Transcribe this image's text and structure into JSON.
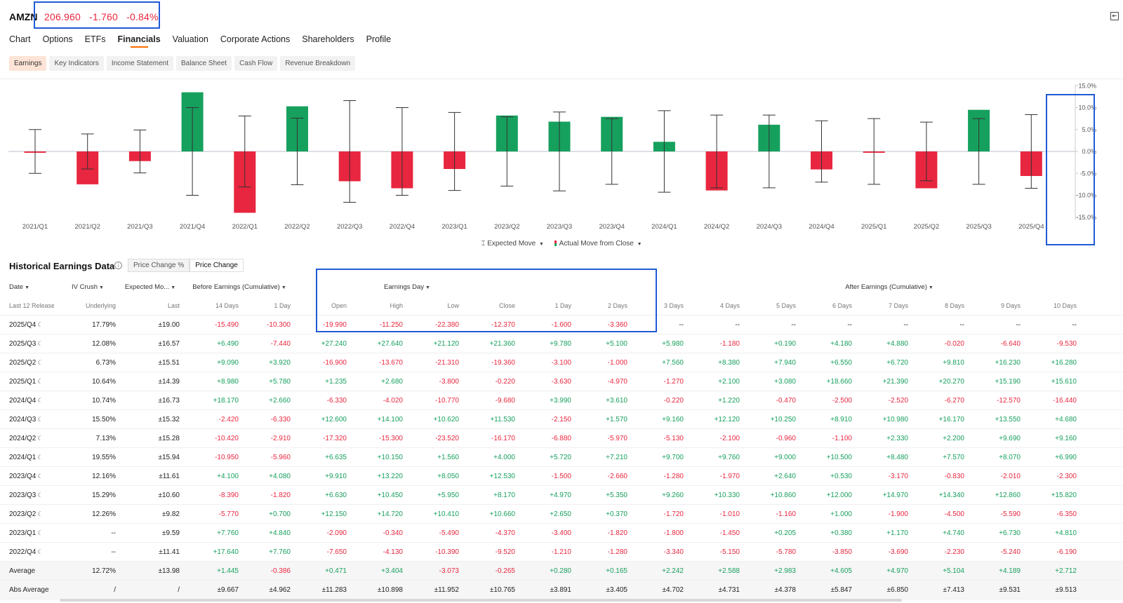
{
  "header": {
    "ticker": "AMZN",
    "price": "206.960",
    "change": "-1.760",
    "change_pct": "-0.84%"
  },
  "nav": [
    "Chart",
    "Options",
    "ETFs",
    "Financials",
    "Valuation",
    "Corporate Actions",
    "Shareholders",
    "Profile"
  ],
  "nav_active": "Financials",
  "subtabs": [
    "Earnings",
    "Key Indicators",
    "Income Statement",
    "Balance Sheet",
    "Cash Flow",
    "Revenue Breakdown"
  ],
  "subtab_active": "Earnings",
  "colors": {
    "positive": "#16a05d",
    "negative": "#e8263f",
    "accent": "#ff6a00",
    "highlight": "#1f5bd6"
  },
  "chart_data": {
    "type": "bar",
    "categories": [
      "2021/Q1",
      "2021/Q2",
      "2021/Q3",
      "2021/Q4",
      "2022/Q1",
      "2022/Q2",
      "2022/Q3",
      "2022/Q4",
      "2023/Q1",
      "2023/Q2",
      "2023/Q3",
      "2023/Q4",
      "2024/Q1",
      "2024/Q2",
      "2024/Q3",
      "2024/Q4",
      "2025/Q1",
      "2025/Q2",
      "2025/Q3",
      "2025/Q4"
    ],
    "series": [
      {
        "name": "Actual Move from Close",
        "values": [
          -0.3,
          -7.5,
          -2.2,
          13.5,
          -14.0,
          10.3,
          -6.8,
          -8.4,
          -4.0,
          8.2,
          6.8,
          7.9,
          2.2,
          -8.9,
          6.1,
          -4.1,
          -0.3,
          -8.4,
          9.5,
          -5.6
        ]
      },
      {
        "name": "Expected Move",
        "values": [
          5.0,
          4.0,
          4.9,
          10.0,
          8.1,
          7.6,
          11.6,
          10.0,
          8.9,
          7.9,
          9.0,
          7.5,
          9.3,
          8.3,
          8.3,
          7.0,
          7.5,
          6.7,
          7.5,
          8.4
        ]
      }
    ],
    "y_ticks": [
      "15.0%",
      "10.0%",
      "5.0%",
      "0.0%",
      "-5.0%",
      "-10.0%",
      "-15.0%"
    ],
    "ylim": [
      -15,
      15
    ],
    "legend": [
      "Expected Move",
      "Actual Move from Close"
    ],
    "legend_position": "bottom-center"
  },
  "section": {
    "title": "Historical Earnings Data",
    "toggle": [
      "Price Change %",
      "Price Change"
    ],
    "toggle_active": "Price Change"
  },
  "table": {
    "group_headers": {
      "date": "Date",
      "iv": "IV Crush",
      "em": "Expected Mo...",
      "before": "Before Earnings (Cumulative)",
      "day": "Earnings Day",
      "after": "After Earnings (Cumulative)"
    },
    "sub_headers": [
      "Last 12 Release",
      "Underlying",
      "Last",
      "14 Days",
      "1 Day",
      "Open",
      "High",
      "Low",
      "Close",
      "1 Day",
      "2 Days",
      "3 Days",
      "4 Days",
      "5 Days",
      "6 Days",
      "7 Days",
      "8 Days",
      "9 Days",
      "10 Days"
    ],
    "rows": [
      [
        "2025/Q4",
        "17.79%",
        "±19.00",
        "-15.490",
        "-10.300",
        "-19.990",
        "-11.250",
        "-22.380",
        "-12.370",
        "-1.600",
        "-3.360",
        "--",
        "--",
        "--",
        "--",
        "--",
        "--",
        "--",
        "--"
      ],
      [
        "2025/Q3",
        "12.08%",
        "±16.57",
        "+6.490",
        "-7.440",
        "+27.240",
        "+27.640",
        "+21.120",
        "+21.360",
        "+9.780",
        "+5.100",
        "+5.980",
        "-1.180",
        "+0.190",
        "+4.180",
        "+4.880",
        "-0.020",
        "-6.640",
        "-9.530"
      ],
      [
        "2025/Q2",
        "6.73%",
        "±15.51",
        "+9.090",
        "+3.920",
        "-16.900",
        "-13.670",
        "-21.310",
        "-19.360",
        "-3.100",
        "-1.000",
        "+7.560",
        "+8.380",
        "+7.940",
        "+6.550",
        "+6.720",
        "+9.810",
        "+16.230",
        "+16.280"
      ],
      [
        "2025/Q1",
        "10.64%",
        "±14.39",
        "+8.980",
        "+5.780",
        "+1.235",
        "+2.680",
        "-3.800",
        "-0.220",
        "-3.630",
        "-4.970",
        "-1.270",
        "+2.100",
        "+3.080",
        "+18.660",
        "+21.390",
        "+20.270",
        "+15.190",
        "+15.610"
      ],
      [
        "2024/Q4",
        "10.74%",
        "±16.73",
        "+18.170",
        "+2.660",
        "-6.330",
        "-4.020",
        "-10.770",
        "-9.680",
        "+3.990",
        "+3.610",
        "-0.220",
        "+1.220",
        "-0.470",
        "-2.500",
        "-2.520",
        "-6.270",
        "-12.570",
        "-16.440"
      ],
      [
        "2024/Q3",
        "15.50%",
        "±15.32",
        "-2.420",
        "-6.330",
        "+12.600",
        "+14.100",
        "+10.620",
        "+11.530",
        "-2.150",
        "+1.570",
        "+9.160",
        "+12.120",
        "+10.250",
        "+8.910",
        "+10.980",
        "+16.170",
        "+13.550",
        "+4.680"
      ],
      [
        "2024/Q2",
        "7.13%",
        "±15.28",
        "-10.420",
        "-2.910",
        "-17.320",
        "-15.300",
        "-23.520",
        "-16.170",
        "-6.880",
        "-5.970",
        "-5.130",
        "-2.100",
        "-0.960",
        "-1.100",
        "+2.330",
        "+2.200",
        "+9.690",
        "+9.160"
      ],
      [
        "2024/Q1",
        "19.55%",
        "±15.94",
        "-10.950",
        "-5.960",
        "+6.635",
        "+10.150",
        "+1.560",
        "+4.000",
        "+5.720",
        "+7.210",
        "+9.700",
        "+9.760",
        "+9.000",
        "+10.500",
        "+8.480",
        "+7.570",
        "+8.070",
        "+6.990"
      ],
      [
        "2023/Q4",
        "12.16%",
        "±11.61",
        "+4.100",
        "+4.080",
        "+9.910",
        "+13.220",
        "+8.050",
        "+12.530",
        "-1.500",
        "-2.660",
        "-1.280",
        "-1.970",
        "+2.640",
        "+0.530",
        "-3.170",
        "-0.830",
        "-2.010",
        "-2.300"
      ],
      [
        "2023/Q3",
        "15.29%",
        "±10.60",
        "-8.390",
        "-1.820",
        "+6.630",
        "+10.450",
        "+5.950",
        "+8.170",
        "+4.970",
        "+5.350",
        "+9.260",
        "+10.330",
        "+10.860",
        "+12.000",
        "+14.970",
        "+14.340",
        "+12.860",
        "+15.820"
      ],
      [
        "2023/Q2",
        "12.26%",
        "±9.82",
        "-5.770",
        "+0.700",
        "+12.150",
        "+14.720",
        "+10.410",
        "+10.660",
        "+2.650",
        "+0.370",
        "-1.720",
        "-1.010",
        "-1.160",
        "+1.000",
        "-1.900",
        "-4.500",
        "-5.590",
        "-6.350"
      ],
      [
        "2023/Q1",
        "--",
        "±9.59",
        "+7.760",
        "+4.840",
        "-2.090",
        "-0.340",
        "-5.490",
        "-4.370",
        "-3.400",
        "-1.820",
        "-1.800",
        "-1.450",
        "+0.205",
        "+0.380",
        "+1.170",
        "+4.740",
        "+6.730",
        "+4.810"
      ],
      [
        "2022/Q4",
        "--",
        "±11.41",
        "+17.640",
        "+7.760",
        "-7.650",
        "-4.130",
        "-10.390",
        "-9.520",
        "-1.210",
        "-1.280",
        "-3.340",
        "-5.150",
        "-5.780",
        "-3.850",
        "-3.690",
        "-2.230",
        "-5.240",
        "-6.190"
      ]
    ],
    "summary_rows": [
      [
        "Average",
        "12.72%",
        "±13.98",
        "+1.445",
        "-0.386",
        "+0.471",
        "+3.404",
        "-3.073",
        "-0.265",
        "+0.280",
        "+0.165",
        "+2.242",
        "+2.588",
        "+2.983",
        "+4.605",
        "+4.970",
        "+5.104",
        "+4.189",
        "+2.712"
      ],
      [
        "Abs Average",
        "/",
        "/",
        "±9.667",
        "±4.962",
        "±11.283",
        "±10.898",
        "±11.952",
        "±10.765",
        "±3.891",
        "±3.405",
        "±4.702",
        "±4.731",
        "±4.378",
        "±5.847",
        "±6.850",
        "±7.413",
        "±9.531",
        "±9.513"
      ]
    ]
  }
}
